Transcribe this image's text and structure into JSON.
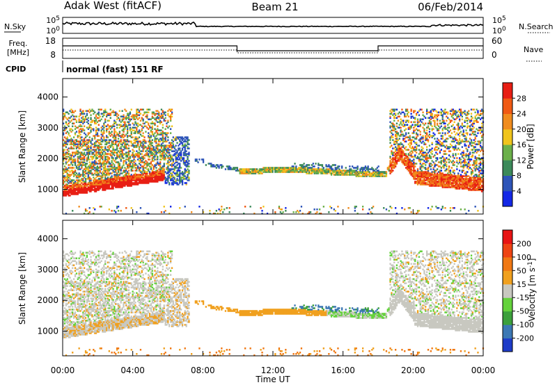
{
  "header": {
    "station": "Adak West (fitACF)",
    "beam": "Beam 21",
    "date": "06/Feb/2014"
  },
  "sky_panel": {
    "left_label": "N.Sky",
    "right_label": "N.Search",
    "left_ticks": [
      "10^5",
      "10^0"
    ],
    "right_ticks": [
      "10^5",
      "10^0"
    ]
  },
  "freq_panel": {
    "left_label_line1": "Freq.",
    "left_label_line2": "[MHz]",
    "left_ticks": [
      "18",
      "8"
    ],
    "right_label": "Nave",
    "right_ticks": [
      "60",
      "0"
    ]
  },
  "cpid": {
    "label": "CPID",
    "mode": "normal (fast) 151 RF"
  },
  "x_axis": {
    "label": "Time UT",
    "ticks": [
      "00:00",
      "04:00",
      "08:00",
      "12:00",
      "16:00",
      "20:00",
      "00:00"
    ]
  },
  "chart_data": [
    {
      "type": "heatmap",
      "quantity": "power",
      "ylabel": "Slant Range [km]",
      "yticks": [
        1000,
        2000,
        3000,
        4000
      ],
      "ylim": [
        200,
        4600
      ],
      "xlim_hours": [
        0,
        24
      ],
      "colorbar": {
        "label": "Power [dB]",
        "ticks": [
          "4",
          "8",
          "12",
          "16",
          "20",
          "24",
          "28"
        ],
        "colors": [
          "#1428e6",
          "#2e55b8",
          "#3c8a5a",
          "#6bb04a",
          "#f0c41c",
          "#f08c1e",
          "#f05a14",
          "#e81e14"
        ]
      }
    },
    {
      "type": "heatmap",
      "quantity": "velocity",
      "ylabel": "Slant Range [km]",
      "yticks": [
        1000,
        2000,
        3000,
        4000
      ],
      "ylim": [
        200,
        4600
      ],
      "xlim_hours": [
        0,
        24
      ],
      "colorbar": {
        "label": "Velocity [m s^-1]",
        "ticks": [
          "200",
          "100",
          "50",
          "15",
          "-15",
          "-50",
          "-100",
          "-200"
        ],
        "colors": [
          "#1e3cc8",
          "#3c78b4",
          "#3ca03c",
          "#64d23c",
          "#c8c8c0",
          "#f0a01e",
          "#f07814",
          "#ee4414",
          "#e81414"
        ]
      }
    }
  ]
}
